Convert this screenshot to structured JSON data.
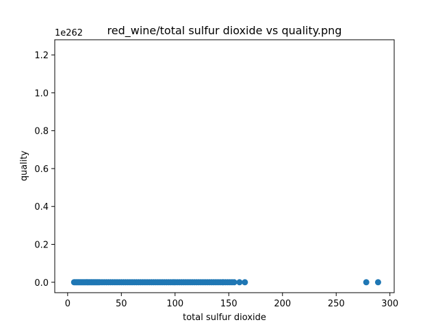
{
  "chart_data": {
    "type": "scatter",
    "title": "red_wine/total sulfur dioxide vs quality.png",
    "xlabel": "total sulfur dioxide",
    "ylabel": "quality",
    "y_offset_label": "1e262",
    "xlim": [
      -12,
      304
    ],
    "ylim": [
      -0.055,
      1.28
    ],
    "x_ticks": [
      0,
      50,
      100,
      150,
      200,
      250,
      300
    ],
    "x_tick_labels": [
      "0",
      "50",
      "100",
      "150",
      "200",
      "250",
      "300"
    ],
    "y_ticks": [
      0.0,
      0.2,
      0.4,
      0.6,
      0.8,
      1.0,
      1.2
    ],
    "y_tick_labels": [
      "0.0",
      "0.2",
      "0.4",
      "0.6",
      "0.8",
      "1.0",
      "1.2"
    ],
    "marker_color": "#1f77b4",
    "grid": false,
    "series": [
      {
        "x": [
          6,
          7,
          8,
          9,
          10,
          11,
          12,
          13,
          14,
          15,
          16,
          17,
          18,
          19,
          20,
          21,
          22,
          23,
          24,
          25,
          26,
          27,
          28,
          29,
          30,
          32,
          34,
          36,
          38,
          40,
          42,
          44,
          46,
          48,
          50,
          52,
          54,
          56,
          58,
          60,
          62,
          64,
          66,
          68,
          70,
          72,
          74,
          76,
          78,
          80,
          82,
          84,
          86,
          88,
          90,
          92,
          94,
          96,
          98,
          100,
          102,
          104,
          106,
          108,
          110,
          112,
          114,
          116,
          118,
          120,
          122,
          124,
          126,
          128,
          130,
          132,
          134,
          136,
          138,
          140,
          142,
          144,
          145,
          147,
          149,
          151,
          153,
          155,
          160,
          165,
          278,
          289
        ],
        "y": [
          0,
          0,
          0,
          0,
          0,
          0,
          0,
          0,
          0,
          0,
          0,
          0,
          0,
          0,
          0,
          0,
          0,
          0,
          0,
          0,
          0,
          0,
          0,
          0,
          0,
          0,
          0,
          0,
          0,
          0,
          0,
          0,
          0,
          0,
          0,
          0,
          0,
          0,
          0,
          0,
          0,
          0,
          0,
          0,
          0,
          0,
          0,
          0,
          0,
          0,
          0,
          0,
          0,
          0,
          0,
          0,
          0,
          0,
          0,
          0,
          0,
          0,
          0,
          0,
          0,
          0,
          0,
          0,
          0,
          0,
          0,
          0,
          0,
          0,
          0,
          0,
          0,
          0,
          0,
          0,
          0,
          0,
          0,
          0,
          0,
          0,
          0,
          0,
          0,
          0,
          0,
          0
        ]
      }
    ]
  }
}
